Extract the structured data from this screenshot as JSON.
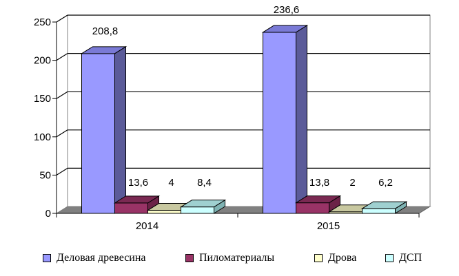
{
  "chart_data": {
    "type": "bar",
    "three_d": true,
    "categories": [
      "2014",
      "2015"
    ],
    "series": [
      {
        "name": "Деловая древесина",
        "values": [
          208.8,
          236.6
        ],
        "labels": [
          "208,8",
          "236,6"
        ],
        "color": "#9999ff",
        "side": "#5b5b99",
        "top": "#7a7ad6"
      },
      {
        "name": "Пиломатериалы",
        "values": [
          13.6,
          13.8
        ],
        "labels": [
          "13,6",
          "13,8"
        ],
        "color": "#993366",
        "side": "#6b2247",
        "top": "#7a2952"
      },
      {
        "name": "Дрова",
        "values": [
          4,
          2
        ],
        "labels": [
          "4",
          "2"
        ],
        "color": "#ffffcc",
        "side": "#bdbd99",
        "top": "#c8c8a0"
      },
      {
        "name": "ДСП",
        "values": [
          8.4,
          6.2
        ],
        "labels": [
          "8,4",
          "6,2"
        ],
        "color": "#ccffff",
        "side": "#7fb3b3",
        "top": "#9fd0d0"
      }
    ],
    "ylim": [
      0,
      250
    ],
    "yticks": [
      0,
      50,
      100,
      150,
      200,
      250
    ],
    "ytick_labels": [
      "0",
      "50",
      "100",
      "150",
      "200",
      "250"
    ],
    "grid": true,
    "legend": "bottom"
  }
}
